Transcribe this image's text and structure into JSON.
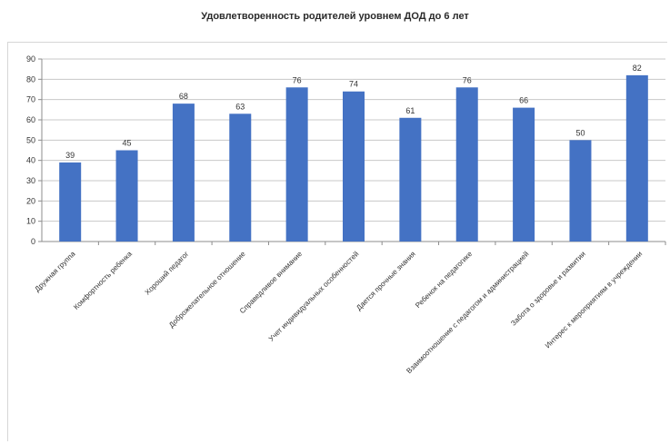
{
  "title": "Удовлетворенность родителей уровнем ДОД до 6 лет",
  "colors": {
    "bar": "#4472c4",
    "grid": "#c8c8c8",
    "axis": "#8c8c8c"
  },
  "chart_data": {
    "type": "bar",
    "title": "Удовлетворенность родителей уровнем ДОД до 6 лет",
    "xlabel": "",
    "ylabel": "",
    "ylim": [
      0,
      90
    ],
    "yticks": [
      0,
      10,
      20,
      30,
      40,
      50,
      60,
      70,
      80,
      90
    ],
    "grid": true,
    "categories": [
      "Дружная группа",
      "Комфортность ребенка",
      "Хороший педагог",
      "Доброжелательное отношение",
      "Справедливое внимание",
      "Учет индивидуальных особенностей",
      "Дается прочные знания",
      "Ребенок на педагогике",
      "Взаимоотношение с педагогом и администрацией",
      "Забота о здоровье и развитии",
      "Интерес к мероприятиям в учреждении"
    ],
    "values": [
      39,
      45,
      68,
      63,
      76,
      74,
      61,
      76,
      66,
      50,
      82
    ]
  }
}
